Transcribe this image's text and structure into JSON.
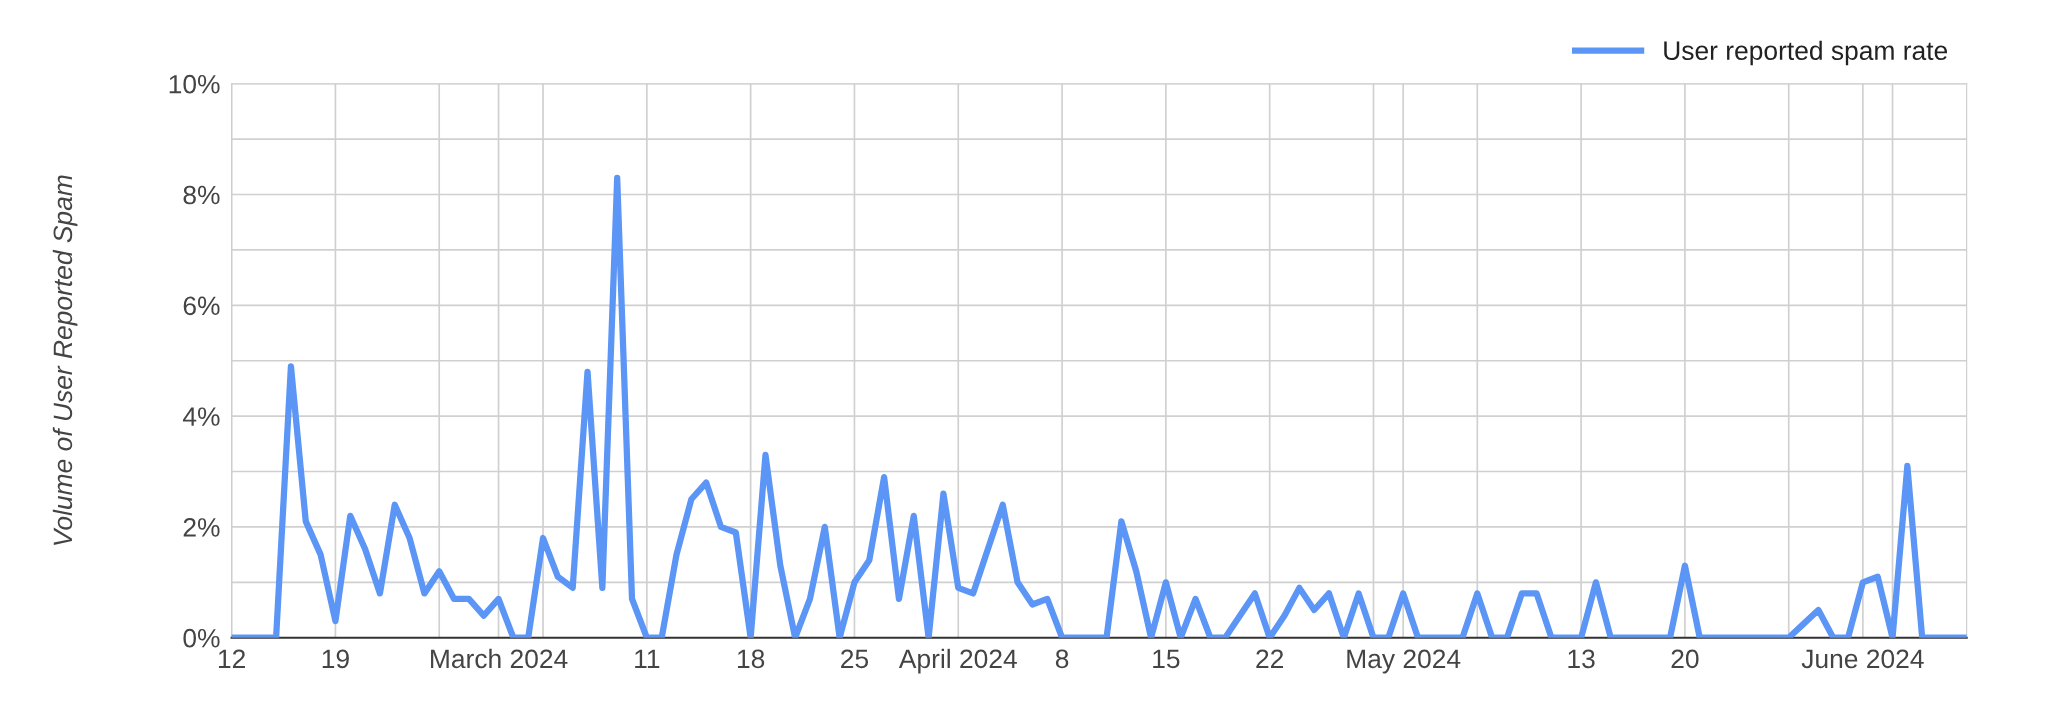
{
  "chart_data": {
    "type": "line",
    "ylabel": "Volume of User Reported Spam",
    "legend": "top right",
    "grid": true,
    "marker": "none",
    "line_style": "solid",
    "xlim": [
      "2024-02-12",
      "2024-06-08"
    ],
    "xticks": [
      {
        "value": "2024-02-12",
        "label": "12"
      },
      {
        "value": "2024-02-19",
        "label": "19"
      },
      {
        "value": "2024-02-26",
        "label": null
      },
      {
        "value": "2024-03-01",
        "label": "March 2024"
      },
      {
        "value": "2024-03-04",
        "label": null
      },
      {
        "value": "2024-03-11",
        "label": "11"
      },
      {
        "value": "2024-03-18",
        "label": "18"
      },
      {
        "value": "2024-03-25",
        "label": "25"
      },
      {
        "value": "2024-04-01",
        "label": "April 2024"
      },
      {
        "value": "2024-04-08",
        "label": "8"
      },
      {
        "value": "2024-04-15",
        "label": "15"
      },
      {
        "value": "2024-04-22",
        "label": "22"
      },
      {
        "value": "2024-04-29",
        "label": null
      },
      {
        "value": "2024-05-01",
        "label": "May 2024"
      },
      {
        "value": "2024-05-06",
        "label": null
      },
      {
        "value": "2024-05-13",
        "label": "13"
      },
      {
        "value": "2024-05-20",
        "label": "20"
      },
      {
        "value": "2024-05-27",
        "label": null
      },
      {
        "value": "2024-06-01",
        "label": "June 2024"
      },
      {
        "value": "2024-06-03",
        "label": null
      }
    ],
    "ylim": [
      0,
      10
    ],
    "yticks": [
      {
        "value": 0,
        "label": "0%"
      },
      {
        "value": 1,
        "label": null
      },
      {
        "value": 2,
        "label": "2%"
      },
      {
        "value": 3,
        "label": null
      },
      {
        "value": 4,
        "label": "4%"
      },
      {
        "value": 5,
        "label": null
      },
      {
        "value": 6,
        "label": "6%"
      },
      {
        "value": 7,
        "label": null
      },
      {
        "value": 8,
        "label": "8%"
      },
      {
        "value": 9,
        "label": null
      },
      {
        "value": 10,
        "label": "10%"
      }
    ],
    "x": [
      "2024-02-12",
      "2024-02-13",
      "2024-02-14",
      "2024-02-15",
      "2024-02-16",
      "2024-02-17",
      "2024-02-18",
      "2024-02-19",
      "2024-02-20",
      "2024-02-21",
      "2024-02-22",
      "2024-02-23",
      "2024-02-24",
      "2024-02-25",
      "2024-02-26",
      "2024-02-27",
      "2024-02-28",
      "2024-02-29",
      "2024-03-01",
      "2024-03-02",
      "2024-03-03",
      "2024-03-04",
      "2024-03-05",
      "2024-03-06",
      "2024-03-07",
      "2024-03-08",
      "2024-03-09",
      "2024-03-10",
      "2024-03-11",
      "2024-03-12",
      "2024-03-13",
      "2024-03-14",
      "2024-03-15",
      "2024-03-16",
      "2024-03-17",
      "2024-03-18",
      "2024-03-19",
      "2024-03-20",
      "2024-03-21",
      "2024-03-22",
      "2024-03-23",
      "2024-03-24",
      "2024-03-25",
      "2024-03-26",
      "2024-03-27",
      "2024-03-28",
      "2024-03-29",
      "2024-03-30",
      "2024-03-31",
      "2024-04-01",
      "2024-04-02",
      "2024-04-03",
      "2024-04-04",
      "2024-04-05",
      "2024-04-06",
      "2024-04-07",
      "2024-04-08",
      "2024-04-09",
      "2024-04-10",
      "2024-04-11",
      "2024-04-12",
      "2024-04-13",
      "2024-04-14",
      "2024-04-15",
      "2024-04-16",
      "2024-04-17",
      "2024-04-18",
      "2024-04-19",
      "2024-04-20",
      "2024-04-21",
      "2024-04-22",
      "2024-04-23",
      "2024-04-24",
      "2024-04-25",
      "2024-04-26",
      "2024-04-27",
      "2024-04-28",
      "2024-04-29",
      "2024-04-30",
      "2024-05-01",
      "2024-05-02",
      "2024-05-03",
      "2024-05-04",
      "2024-05-05",
      "2024-05-06",
      "2024-05-07",
      "2024-05-08",
      "2024-05-09",
      "2024-05-10",
      "2024-05-11",
      "2024-05-12",
      "2024-05-13",
      "2024-05-14",
      "2024-05-15",
      "2024-05-16",
      "2024-05-17",
      "2024-05-18",
      "2024-05-19",
      "2024-05-20",
      "2024-05-21",
      "2024-05-22",
      "2024-05-23",
      "2024-05-24",
      "2024-05-25",
      "2024-05-26",
      "2024-05-27",
      "2024-05-28",
      "2024-05-29",
      "2024-05-30",
      "2024-05-31",
      "2024-06-01",
      "2024-06-02",
      "2024-06-03",
      "2024-06-04",
      "2024-06-05",
      "2024-06-06",
      "2024-06-07",
      "2024-06-08"
    ],
    "series": [
      {
        "name": "User reported spam rate",
        "color": "#5b95f5",
        "values": [
          0,
          0,
          0,
          0,
          4.9,
          2.1,
          1.5,
          0.3,
          2.2,
          1.6,
          0.8,
          2.4,
          1.8,
          0.8,
          1.2,
          0.7,
          0.7,
          0.4,
          0.7,
          0,
          0,
          1.8,
          1.1,
          0.9,
          4.8,
          0.9,
          8.3,
          0.7,
          0,
          0,
          1.5,
          2.5,
          2.8,
          2.0,
          1.9,
          0,
          3.3,
          1.3,
          0,
          0.7,
          2.0,
          0,
          1.0,
          1.4,
          2.9,
          0.7,
          2.2,
          0,
          2.6,
          0.9,
          0.8,
          1.6,
          2.4,
          1.0,
          0.6,
          0.7,
          0,
          0,
          0,
          0,
          2.1,
          1.2,
          0,
          1.0,
          0,
          0.7,
          0,
          0,
          0.4,
          0.8,
          0,
          0.4,
          0.9,
          0.5,
          0.8,
          0,
          0.8,
          0,
          0,
          0.8,
          0,
          0,
          0,
          0,
          0.8,
          0,
          0,
          0.8,
          0.8,
          0,
          0,
          0,
          1.0,
          0,
          0,
          0,
          0,
          0,
          1.3,
          0,
          0,
          0,
          0,
          0,
          0,
          0,
          0.25,
          0.5,
          0,
          0,
          1.0,
          1.1,
          0,
          3.1,
          0,
          0,
          0,
          0
        ]
      }
    ]
  }
}
